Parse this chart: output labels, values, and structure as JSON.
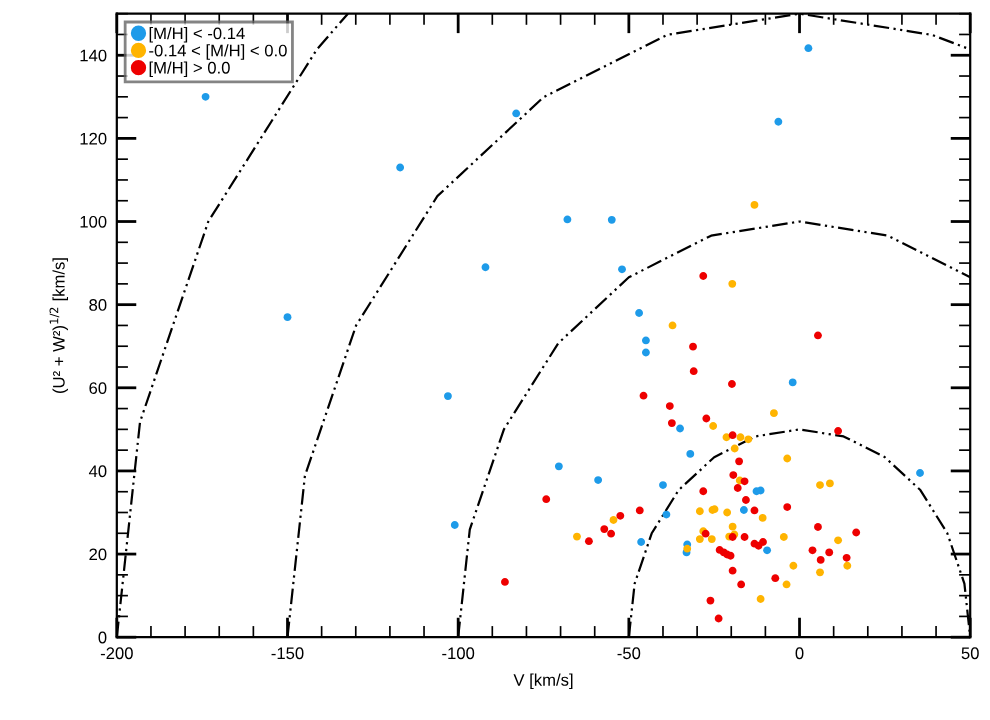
{
  "chart_data": {
    "type": "scatter",
    "xlabel": "V [km/s]",
    "ylabel": "(U² + W²)$^{1/2}$ [km/s]",
    "xlim": [
      -200,
      50
    ],
    "ylim": [
      0,
      150
    ],
    "xticks": [
      -200,
      -150,
      -100,
      -50,
      0,
      50
    ],
    "yticks": [
      0,
      20,
      40,
      60,
      80,
      100,
      120,
      140
    ],
    "grid": false,
    "legend": "top left",
    "marker": "circle",
    "series": [
      {
        "name": "[M/H] < -0.14",
        "color": "#1e9be9",
        "x": [
          -174,
          -117,
          -83,
          -92,
          -150,
          -103,
          -101,
          2.6,
          -6.2,
          -68,
          -55,
          -52,
          -47,
          -45,
          -45,
          -2,
          -35,
          -32,
          -70.5,
          -59,
          -40,
          -12.6,
          -11.4,
          -16.3,
          -39,
          -46.4,
          -32.9,
          -33.1,
          -9.5,
          35.3
        ],
        "values": [
          130,
          113,
          126,
          89,
          77,
          58,
          27,
          141.7,
          124,
          100.5,
          100.4,
          88.5,
          78,
          71.4,
          68.5,
          61.3,
          50.2,
          44.1,
          41.1,
          37.8,
          36.6,
          35.1,
          35.3,
          30.6,
          29.5,
          22.9,
          22.3,
          20.4,
          20.9,
          39.5
        ]
      },
      {
        "name": "-0.14 < [M/H] < 0.0",
        "color": "#ffb400",
        "x": [
          -13.2,
          -19.7,
          -37.2,
          -7.5,
          -25.3,
          -21.4,
          -17.3,
          -15,
          -19,
          -3.6,
          -17.5,
          6,
          8.9,
          -29.2,
          -25.5,
          -24.9,
          -21.2,
          -10.8,
          -54.5,
          -65.2,
          -28.2,
          -29.2,
          -19.6,
          -20.6,
          -19.1,
          -25.7,
          -32.9,
          -4.6,
          11.3,
          14,
          -1.8,
          6,
          -3.8,
          -11.4
        ],
        "values": [
          104,
          85,
          75,
          53.9,
          50.8,
          48.1,
          48.1,
          47.6,
          45.4,
          43,
          37.7,
          36.6,
          37,
          30.3,
          30.6,
          30.8,
          30,
          28.7,
          28.2,
          24.2,
          25.5,
          23.6,
          26.6,
          24.2,
          24.7,
          23.6,
          21.3,
          24.1,
          23.3,
          17.2,
          17.2,
          15.6,
          12.7,
          9.2
        ]
      },
      {
        "name": "[M/H] > 0.0",
        "color": "#ee0000",
        "x": [
          -28.2,
          5.4,
          -31.2,
          -31,
          -19.8,
          -45.7,
          -38,
          -37.4,
          -27.3,
          11.3,
          -19.6,
          -17.7,
          -19.4,
          -16.1,
          -28.2,
          -18.1,
          -74.2,
          -86.3,
          -15.7,
          -46.8,
          -13.2,
          -3.6,
          -52.5,
          -57.2,
          -55.2,
          -61.7,
          -27.5,
          -19.6,
          -16.1,
          -13.2,
          -12,
          -10.7,
          5.4,
          16.6,
          3.8,
          6.2,
          8.7,
          13.8,
          -23.4,
          -22.2,
          -21.2,
          -20.2,
          -19.6,
          -7.1,
          -17.1,
          -26.1,
          -23.7
        ],
        "values": [
          86.9,
          72.6,
          69.9,
          64,
          60.9,
          58.1,
          55.6,
          51.5,
          52.6,
          49.6,
          48.6,
          42.3,
          39,
          37.5,
          35.1,
          35.9,
          33.2,
          13.3,
          33,
          30.5,
          30.5,
          31.3,
          29.2,
          26,
          24.9,
          23.1,
          24.9,
          24.1,
          24.1,
          22.5,
          22,
          22.9,
          26.5,
          25.2,
          20.9,
          18.6,
          20.4,
          19.1,
          21,
          20.4,
          19.9,
          19.6,
          16,
          14.2,
          12.7,
          8.8,
          4.5
        ]
      },
      {
        "type": "line",
        "color": "#000000",
        "line_style": "dashed",
        "marker": "none",
        "x": [
          -50,
          -48.3,
          -43.3,
          -35.4,
          -25,
          -12.9,
          0,
          12.9,
          25,
          35.4,
          43.3,
          48.3,
          50
        ],
        "values": [
          0,
          12.9,
          25,
          35.4,
          43.3,
          48.3,
          50,
          48.3,
          43.3,
          35.4,
          25,
          12.9,
          0
        ]
      },
      {
        "type": "line",
        "color": "#000000",
        "line_style": "dashed",
        "marker": "none",
        "x": [
          -100,
          -96.6,
          -86.6,
          -70.7,
          -50,
          -25.9,
          0,
          25.9,
          50
        ],
        "values": [
          0,
          25.9,
          50,
          70.7,
          86.6,
          96.6,
          100,
          96.6,
          86.6
        ]
      },
      {
        "type": "line",
        "color": "#000000",
        "line_style": "dashed",
        "marker": "none",
        "x": [
          -150,
          -144.9,
          -129.9,
          -106.1,
          -75,
          -38.8,
          0,
          38.8,
          50
        ],
        "values": [
          0,
          38.8,
          75,
          106.1,
          129.9,
          144.9,
          150,
          144.9,
          141.4
        ]
      },
      {
        "type": "line",
        "color": "#000000",
        "line_style": "dashed",
        "marker": "none",
        "x": [
          -200,
          -193.2,
          -173.2,
          -141.4,
          -132.3
        ],
        "values": [
          0,
          51.8,
          100,
          141.4,
          150
        ]
      }
    ]
  }
}
